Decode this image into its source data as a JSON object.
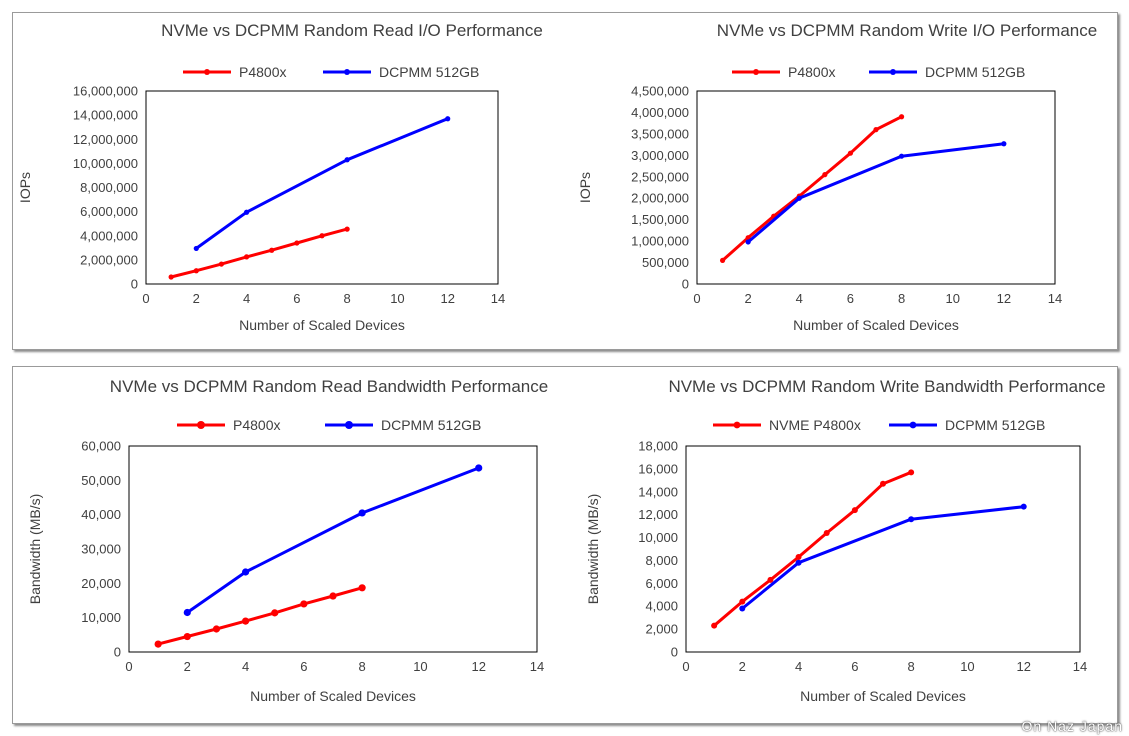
{
  "chart_data": [
    {
      "type": "line",
      "title": "NVMe vs DCPMM Random Read I/O Performance",
      "xlabel": "Number of Scaled Devices",
      "ylabel": "IOPs",
      "xlim": [
        0,
        14
      ],
      "ylim": [
        0,
        16000000
      ],
      "x_ticks": [
        0,
        2,
        4,
        6,
        8,
        10,
        12,
        14
      ],
      "x_tick_labels": [
        "0",
        "2",
        "4",
        "6",
        "8",
        "10",
        "12",
        "14"
      ],
      "y_ticks": [
        0,
        2000000,
        4000000,
        6000000,
        8000000,
        10000000,
        12000000,
        14000000,
        16000000
      ],
      "y_tick_labels": [
        "0",
        "2,000,000",
        "4,000,000",
        "6,000,000",
        "8,000,000",
        "10,000,000",
        "12,000,000",
        "14,000,000",
        "16,000,000"
      ],
      "legend": "top",
      "grid": "none",
      "series": [
        {
          "name": "P4800x",
          "color": "#ff0000",
          "x": [
            1,
            2,
            3,
            4,
            5,
            6,
            7,
            8
          ],
          "values": [
            580000,
            1100000,
            1650000,
            2250000,
            2800000,
            3400000,
            4000000,
            4550000
          ]
        },
        {
          "name": "DCPMM 512GB",
          "color": "#0000ff",
          "x": [
            2,
            4,
            8,
            12
          ],
          "values": [
            2950000,
            5950000,
            10300000,
            13700000
          ]
        }
      ]
    },
    {
      "type": "line",
      "title": "NVMe vs DCPMM Random Write I/O Performance",
      "xlabel": "Number of Scaled Devices",
      "ylabel": "IOPs",
      "xlim": [
        0,
        14
      ],
      "ylim": [
        0,
        4500000
      ],
      "x_ticks": [
        0,
        2,
        4,
        6,
        8,
        10,
        12,
        14
      ],
      "x_tick_labels": [
        "0",
        "2",
        "4",
        "6",
        "8",
        "10",
        "12",
        "14"
      ],
      "y_ticks": [
        0,
        500000,
        1000000,
        1500000,
        2000000,
        2500000,
        3000000,
        3500000,
        4000000,
        4500000
      ],
      "y_tick_labels": [
        "0",
        "500,000",
        "1,000,000",
        "1,500,000",
        "2,000,000",
        "2,500,000",
        "3,000,000",
        "3,500,000",
        "4,000,000",
        "4,500,000"
      ],
      "legend": "top",
      "grid": "none",
      "series": [
        {
          "name": "P4800x",
          "color": "#ff0000",
          "x": [
            1,
            2,
            3,
            4,
            5,
            6,
            7,
            8
          ],
          "values": [
            550000,
            1080000,
            1580000,
            2050000,
            2550000,
            3050000,
            3600000,
            3900000
          ]
        },
        {
          "name": "DCPMM 512GB",
          "color": "#0000ff",
          "x": [
            2,
            4,
            8,
            12
          ],
          "values": [
            980000,
            2000000,
            2980000,
            3270000
          ]
        }
      ]
    },
    {
      "type": "line",
      "title": "NVMe vs DCPMM Random Read Bandwidth Performance",
      "xlabel": "Number of Scaled Devices",
      "ylabel": "Bandwidth (MB/s)",
      "xlim": [
        0,
        14
      ],
      "ylim": [
        0,
        60000
      ],
      "x_ticks": [
        0,
        2,
        4,
        6,
        8,
        10,
        12,
        14
      ],
      "x_tick_labels": [
        "0",
        "2",
        "4",
        "6",
        "8",
        "10",
        "12",
        "14"
      ],
      "y_ticks": [
        0,
        10000,
        20000,
        30000,
        40000,
        50000,
        60000
      ],
      "y_tick_labels": [
        "0",
        "10,000",
        "20,000",
        "30,000",
        "40,000",
        "50,000",
        "60,000"
      ],
      "legend": "top",
      "grid": "none",
      "series": [
        {
          "name": "P4800x",
          "color": "#ff0000",
          "x": [
            1,
            2,
            3,
            4,
            5,
            6,
            7,
            8
          ],
          "values": [
            2300,
            4500,
            6700,
            9000,
            11400,
            14000,
            16300,
            18700
          ]
        },
        {
          "name": "DCPMM 512GB",
          "color": "#0000ff",
          "x": [
            2,
            4,
            8,
            12
          ],
          "values": [
            11500,
            23300,
            40500,
            53600
          ]
        }
      ]
    },
    {
      "type": "line",
      "title": "NVMe vs DCPMM Random Write Bandwidth Performance",
      "xlabel": "Number of Scaled Devices",
      "ylabel": "Bandwidth (MB/s)",
      "xlim": [
        0,
        14
      ],
      "ylim": [
        0,
        18000
      ],
      "x_ticks": [
        0,
        2,
        4,
        6,
        8,
        10,
        12,
        14
      ],
      "x_tick_labels": [
        "0",
        "2",
        "4",
        "6",
        "8",
        "10",
        "12",
        "14"
      ],
      "y_ticks": [
        0,
        2000,
        4000,
        6000,
        8000,
        10000,
        12000,
        14000,
        16000,
        18000
      ],
      "y_tick_labels": [
        "0",
        "2,000",
        "4,000",
        "6,000",
        "8,000",
        "10,000",
        "12,000",
        "14,000",
        "16,000",
        "18,000"
      ],
      "legend": "top",
      "grid": "none",
      "series": [
        {
          "name": "NVME P4800x",
          "color": "#ff0000",
          "x": [
            1,
            2,
            3,
            4,
            5,
            6,
            7,
            8
          ],
          "values": [
            2300,
            4400,
            6300,
            8300,
            10400,
            12400,
            14700,
            15700
          ]
        },
        {
          "name": "DCPMM 512GB",
          "color": "#0000ff",
          "x": [
            2,
            4,
            8,
            12
          ],
          "values": [
            3800,
            7800,
            11600,
            12700
          ]
        }
      ]
    }
  ],
  "watermark": "On Naz Japan"
}
